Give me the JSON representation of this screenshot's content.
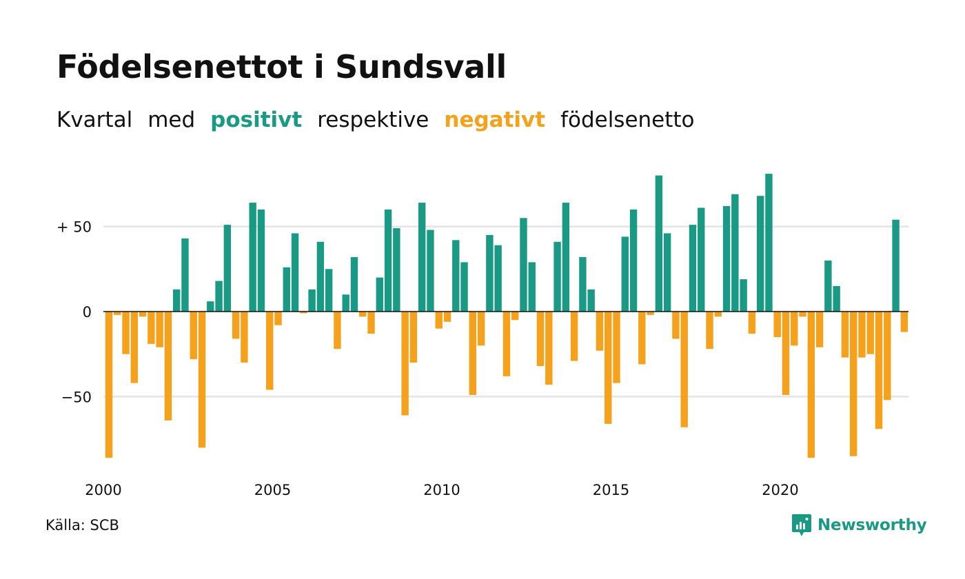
{
  "header": {
    "title": "Födelsenettot i Sundsvall",
    "subtitle": {
      "part1": "Kvartal",
      "part2": "med",
      "positive_word": "positivt",
      "part3": "respektive",
      "negative_word": "negativt",
      "part4": "födelsenetto"
    }
  },
  "footer": {
    "source": "Källa: SCB",
    "brand": "Newsworthy"
  },
  "colors": {
    "positive": "#1a9985",
    "negative": "#f5a11c",
    "grid": "#e3e3e3",
    "text": "#111111"
  },
  "chart_data": {
    "type": "bar",
    "title": "Födelsenettot i Sundsvall",
    "subtitle": "Kvartal med positivt respektive negativt födelsenetto",
    "xlabel": "",
    "ylabel": "",
    "x_start": 2000,
    "x_end": 2024,
    "ylim": [
      -88,
      82
    ],
    "y_ticks": [
      {
        "value": 50,
        "label": "+ 50"
      },
      {
        "value": 0,
        "label": "0"
      },
      {
        "value": -50,
        "label": "−50"
      }
    ],
    "x_ticks": [
      {
        "value": 2000,
        "label": "2000"
      },
      {
        "value": 2005,
        "label": "2005"
      },
      {
        "value": 2010,
        "label": "2010"
      },
      {
        "value": 2015,
        "label": "2015"
      },
      {
        "value": 2020,
        "label": "2020"
      }
    ],
    "grid": true,
    "series": [
      {
        "values": [
          -86,
          -2,
          -25,
          -42,
          -3,
          -19,
          -21,
          -64,
          13,
          43,
          -28,
          -80,
          6,
          18,
          51,
          -16,
          -30,
          64,
          60,
          -46,
          -8,
          26,
          46,
          -1,
          13,
          41,
          25,
          -22,
          10,
          32,
          -3,
          -13,
          20,
          60,
          49,
          -61,
          -30,
          64,
          48,
          -10,
          -6,
          42,
          29,
          -49,
          -20,
          45,
          39,
          -38,
          -5,
          55,
          29,
          -32,
          -43,
          41,
          64,
          -29,
          32,
          13,
          -23,
          -66,
          -42,
          44,
          60,
          -31,
          -2,
          80,
          46,
          -16,
          -68,
          51,
          61,
          -22,
          -3,
          62,
          69,
          19,
          -13,
          68,
          81,
          -15,
          -49,
          -20,
          -3,
          -86,
          -21,
          30,
          15,
          -27,
          -85,
          -27,
          -25,
          -69,
          -52,
          54,
          -12
        ]
      }
    ]
  }
}
